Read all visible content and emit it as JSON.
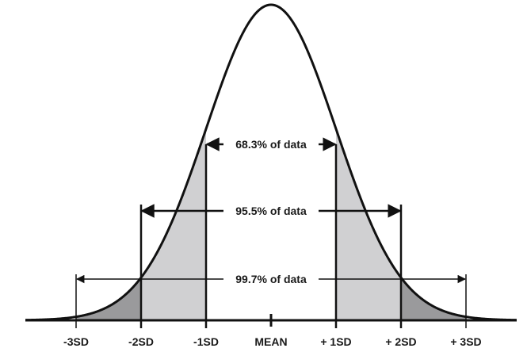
{
  "diagram": {
    "type": "normal-distribution",
    "tick_labels": [
      "-3SD",
      "-2SD",
      "-1SD",
      "MEAN",
      "+ 1SD",
      "+ 2SD",
      "+ 3SD"
    ],
    "spans": [
      {
        "label": "68.3% of data",
        "from_sd": -1,
        "to_sd": 1
      },
      {
        "label": "95.5% of data",
        "from_sd": -2,
        "to_sd": 2
      },
      {
        "label": "99.7% of data",
        "from_sd": -3,
        "to_sd": 3
      }
    ],
    "colors": {
      "curve": "#111111",
      "inner_band": "#d0d0d2",
      "outer_band": "#9a9a9c",
      "axis": "#111111",
      "background": "#ffffff"
    }
  }
}
